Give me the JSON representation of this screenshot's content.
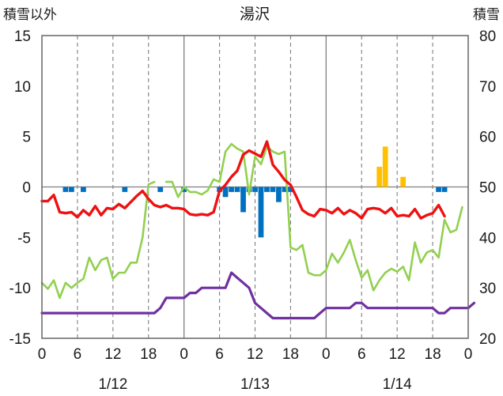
{
  "chart_data": {
    "type": "line",
    "title": "湯沢",
    "y_left_label": "積雪以外",
    "y_right_label": "積雪",
    "y_left_range": [
      -15,
      15
    ],
    "y_right_range": [
      20,
      80
    ],
    "y_left_ticks": [
      15,
      10,
      5,
      0,
      -5,
      -10,
      -15
    ],
    "y_right_ticks": [
      80,
      70,
      60,
      50,
      40,
      30,
      20
    ],
    "x_range": [
      0,
      72
    ],
    "x_ticks": [
      {
        "x": 0,
        "label": "0"
      },
      {
        "x": 6,
        "label": "6"
      },
      {
        "x": 12,
        "label": "12"
      },
      {
        "x": 18,
        "label": "18"
      },
      {
        "x": 24,
        "label": "0"
      },
      {
        "x": 30,
        "label": "6"
      },
      {
        "x": 36,
        "label": "12"
      },
      {
        "x": 42,
        "label": "18"
      },
      {
        "x": 48,
        "label": "0"
      },
      {
        "x": 54,
        "label": "6"
      },
      {
        "x": 60,
        "label": "12"
      },
      {
        "x": 66,
        "label": "18"
      },
      {
        "x": 72,
        "label": "0"
      }
    ],
    "dates": [
      {
        "x": 12,
        "label": "1/12"
      },
      {
        "x": 36,
        "label": "1/13"
      },
      {
        "x": 60,
        "label": "1/14"
      }
    ],
    "colors": {
      "red": "#ee1111",
      "green": "#92d050",
      "purple": "#7030a0",
      "blue": "#0070c0",
      "orange": "#ffc000",
      "axis": "#666666",
      "grid": "#7f7f7f"
    },
    "series_red": [
      -1.4,
      -1.4,
      -0.8,
      -2.5,
      -2.6,
      -2.5,
      -3,
      -2.3,
      -2.8,
      -1.9,
      -2.8,
      -2.1,
      -2.2,
      -1.7,
      -2.1,
      -1.5,
      -0.9,
      -0.4,
      -1.2,
      -1.8,
      -2,
      -1.8,
      -2.1,
      -2.1,
      -2.2,
      -2.7,
      -2.8,
      -2.7,
      -2.8,
      -2.5,
      -0.4,
      0.2,
      1,
      1.6,
      3.2,
      3.6,
      3.3,
      3,
      4.5,
      2.2,
      1.5,
      0.7,
      0.2,
      -1,
      -2.3,
      -2.7,
      -2.9,
      -2.2,
      -2.3,
      -2.6,
      -2.1,
      -2.7,
      -2.3,
      -2.6,
      -3.1,
      -2.2,
      -2.1,
      -2.2,
      -2.6,
      -2.1,
      -2.9,
      -2.8,
      -2.9,
      -2.2,
      -3.1,
      -2.8,
      -2.6,
      -1.8,
      -2.9
    ],
    "series_green": [
      31,
      29.8,
      31.5,
      28,
      31,
      30,
      31,
      31.8,
      36,
      33.5,
      35.5,
      36,
      31.8,
      33,
      33,
      35,
      35,
      40,
      50.5,
      51,
      null,
      51,
      51,
      48,
      50,
      49,
      49,
      48.5,
      49.3,
      51.5,
      51,
      57,
      58.5,
      57.6,
      57,
      48.5,
      56,
      54.5,
      58,
      57,
      56.5,
      57,
      38,
      37.5,
      38.5,
      33,
      32.5,
      32.5,
      33.5,
      36.8,
      35,
      37,
      39.5,
      35.5,
      32,
      33.5,
      29.5,
      31.5,
      33,
      33.8,
      33.2,
      34.2,
      31.5,
      39,
      35,
      37,
      37.5,
      36,
      43.5,
      41,
      41.5,
      46
    ],
    "series_purple": [
      25,
      25,
      25,
      25,
      25,
      25,
      25,
      25,
      25,
      25,
      25,
      25,
      25,
      25,
      25,
      25,
      25,
      25,
      25,
      25,
      26,
      28,
      28,
      28,
      28,
      29,
      29,
      30,
      30,
      30,
      30,
      30,
      33,
      32,
      31,
      30,
      27,
      26,
      25,
      24,
      24,
      24,
      24,
      24,
      24,
      24,
      24,
      25,
      26,
      26,
      26,
      26,
      26,
      27,
      27,
      26,
      26,
      26,
      26,
      26,
      26,
      26,
      26,
      26,
      26,
      26,
      26,
      25,
      25,
      26,
      26,
      26,
      26,
      27
    ],
    "bars_blue": [
      {
        "x": 4,
        "v": -0.5
      },
      {
        "x": 5,
        "v": -0.5
      },
      {
        "x": 7,
        "v": -0.5
      },
      {
        "x": 14,
        "v": -0.5
      },
      {
        "x": 20,
        "v": -0.5
      },
      {
        "x": 24,
        "v": -0.5
      },
      {
        "x": 30,
        "v": -0.5
      },
      {
        "x": 31,
        "v": -1
      },
      {
        "x": 32,
        "v": -0.5
      },
      {
        "x": 33,
        "v": -0.5
      },
      {
        "x": 34,
        "v": -2.5
      },
      {
        "x": 35,
        "v": -0.5
      },
      {
        "x": 36,
        "v": -0.5
      },
      {
        "x": 37,
        "v": -5
      },
      {
        "x": 38,
        "v": -0.5
      },
      {
        "x": 39,
        "v": -0.5
      },
      {
        "x": 40,
        "v": -1.5
      },
      {
        "x": 41,
        "v": -0.5
      },
      {
        "x": 42,
        "v": -0.5
      },
      {
        "x": 67,
        "v": -0.5
      },
      {
        "x": 68,
        "v": -0.5
      }
    ],
    "bars_orange": [
      {
        "x": 57,
        "v": 2
      },
      {
        "x": 58,
        "v": 4
      },
      {
        "x": 61,
        "v": 1
      }
    ]
  }
}
